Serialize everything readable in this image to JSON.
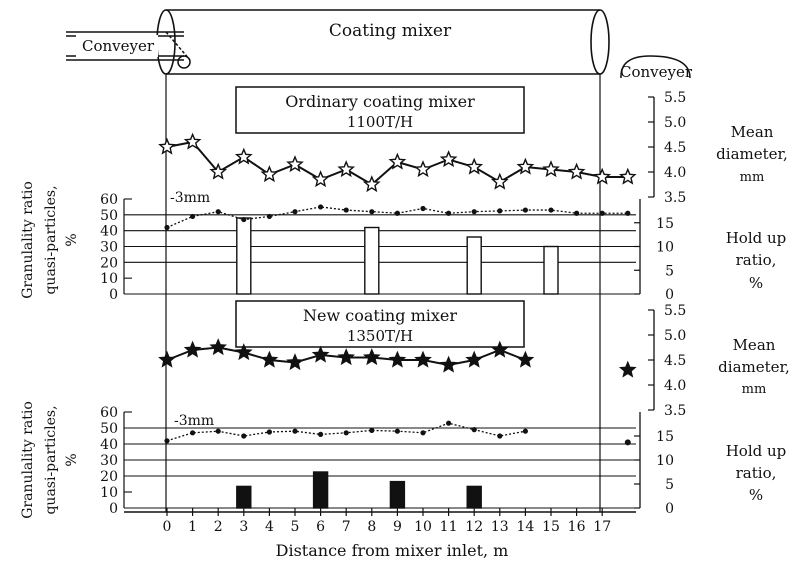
{
  "diagram": {
    "mixer_label": "Coating mixer",
    "conveyor_left": "Conveyer",
    "conveyor_right": "Conveyer"
  },
  "colors": {
    "ink": "#111111",
    "background": "#ffffff",
    "filled_bar": "#111111"
  },
  "chart_data": [
    {
      "type": "line",
      "panel": "ordinary-mean-diameter",
      "title": "Ordinary coating mixer",
      "subtitle": "1100T/H",
      "ylabel": "Mean diameter, mm",
      "yticks": [
        "3.5",
        "4.0",
        "4.5",
        "5.0",
        "5.5"
      ],
      "ylim": [
        3.5,
        5.5
      ],
      "marker": "open-star",
      "x": [
        0,
        1,
        2,
        3,
        4,
        5,
        6,
        7,
        8,
        9,
        10,
        11,
        12,
        13,
        14,
        15,
        16,
        17,
        18
      ],
      "values": [
        4.5,
        4.6,
        4.0,
        4.3,
        3.95,
        4.15,
        3.85,
        4.05,
        3.75,
        4.2,
        4.05,
        4.25,
        4.1,
        3.8,
        4.1,
        4.05,
        4.0,
        3.9,
        3.9
      ]
    },
    {
      "type": "bar+line",
      "panel": "ordinary-granularity",
      "annotation": "-3mm",
      "ylabel_left": "Granulality ratio quasi-particles, %",
      "yticks_left": [
        "0",
        "10",
        "20",
        "30",
        "40",
        "50",
        "60"
      ],
      "ylim_left": [
        0,
        60
      ],
      "ylabel_right": "Hold up ratio, %",
      "yticks_right": [
        "0",
        "5",
        "10",
        "15"
      ],
      "ylim_right": [
        0,
        20
      ],
      "granularity_series": {
        "x": [
          0,
          1,
          2,
          3,
          4,
          5,
          6,
          7,
          8,
          9,
          10,
          11,
          12,
          13,
          14,
          15,
          16,
          17,
          18
        ],
        "values": [
          42,
          49,
          52,
          47,
          49,
          52,
          55,
          53,
          52,
          51,
          54,
          51,
          52,
          52.5,
          53,
          53,
          51,
          51,
          51
        ]
      },
      "holdup_bars": {
        "style": "open",
        "x": [
          3,
          8,
          12,
          15
        ],
        "values": [
          16,
          14,
          12,
          10
        ]
      }
    },
    {
      "type": "line",
      "panel": "new-mean-diameter",
      "title": "New coating mixer",
      "subtitle": "1350T/H",
      "ylabel": "Mean diameter, mm",
      "yticks": [
        "3.5",
        "4.0",
        "4.5",
        "5.0",
        "5.5"
      ],
      "ylim": [
        3.5,
        5.5
      ],
      "marker": "filled-star",
      "x": [
        0,
        1,
        2,
        3,
        4,
        5,
        6,
        7,
        8,
        9,
        10,
        11,
        12,
        13,
        14
      ],
      "values": [
        4.5,
        4.7,
        4.75,
        4.65,
        4.5,
        4.45,
        4.6,
        4.55,
        4.55,
        4.5,
        4.5,
        4.4,
        4.5,
        4.7,
        4.5
      ],
      "legend_marker_x": 18,
      "legend_marker_value": 4.3
    },
    {
      "type": "bar+line",
      "panel": "new-granularity",
      "annotation": "-3mm",
      "ylabel_left": "Granulality ratio quasi-particles, %",
      "yticks_left": [
        "0",
        "10",
        "20",
        "30",
        "40",
        "50",
        "60"
      ],
      "ylim_left": [
        0,
        60
      ],
      "ylabel_right": "Hold up ratio, %",
      "yticks_right": [
        "0",
        "5",
        "10",
        "15"
      ],
      "ylim_right": [
        0,
        20
      ],
      "granularity_series": {
        "x": [
          0,
          1,
          2,
          3,
          4,
          5,
          6,
          7,
          8,
          9,
          10,
          11,
          12,
          13,
          14
        ],
        "values": [
          42,
          47,
          48,
          45,
          47.5,
          48,
          46,
          47,
          48.5,
          48,
          47,
          53,
          49,
          45,
          48
        ]
      },
      "isolated_point": {
        "x": 18,
        "value": 41
      },
      "holdup_bars": {
        "style": "filled",
        "x": [
          3,
          6,
          9,
          12
        ],
        "values": [
          4.5,
          7.5,
          5.5,
          4.5
        ]
      }
    }
  ],
  "xaxis": {
    "label": "Distance from mixer inlet, m",
    "ticks": [
      "0",
      "1",
      "2",
      "3",
      "4",
      "5",
      "6",
      "7",
      "8",
      "9",
      "10",
      "11",
      "12",
      "13",
      "14",
      "15",
      "16",
      "17"
    ]
  }
}
